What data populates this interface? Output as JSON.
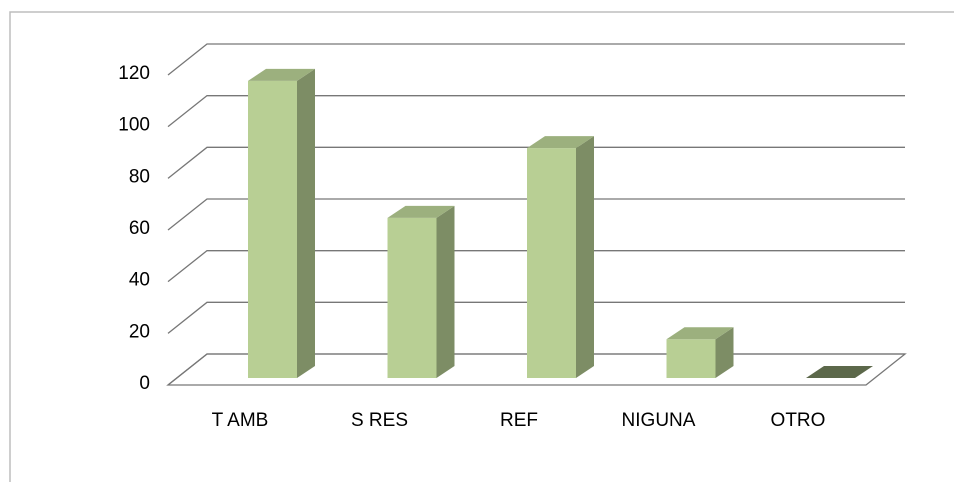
{
  "chart_data": {
    "type": "bar3d",
    "categories": [
      "T AMB",
      "S RES",
      "REF",
      "NIGUNA",
      "OTRO"
    ],
    "values": [
      115,
      62,
      89,
      15,
      0
    ],
    "color": "#b8cf94",
    "ylim": [
      0,
      120
    ],
    "yticks": [
      0,
      20,
      40,
      60,
      80,
      100,
      120
    ],
    "grid": true
  }
}
